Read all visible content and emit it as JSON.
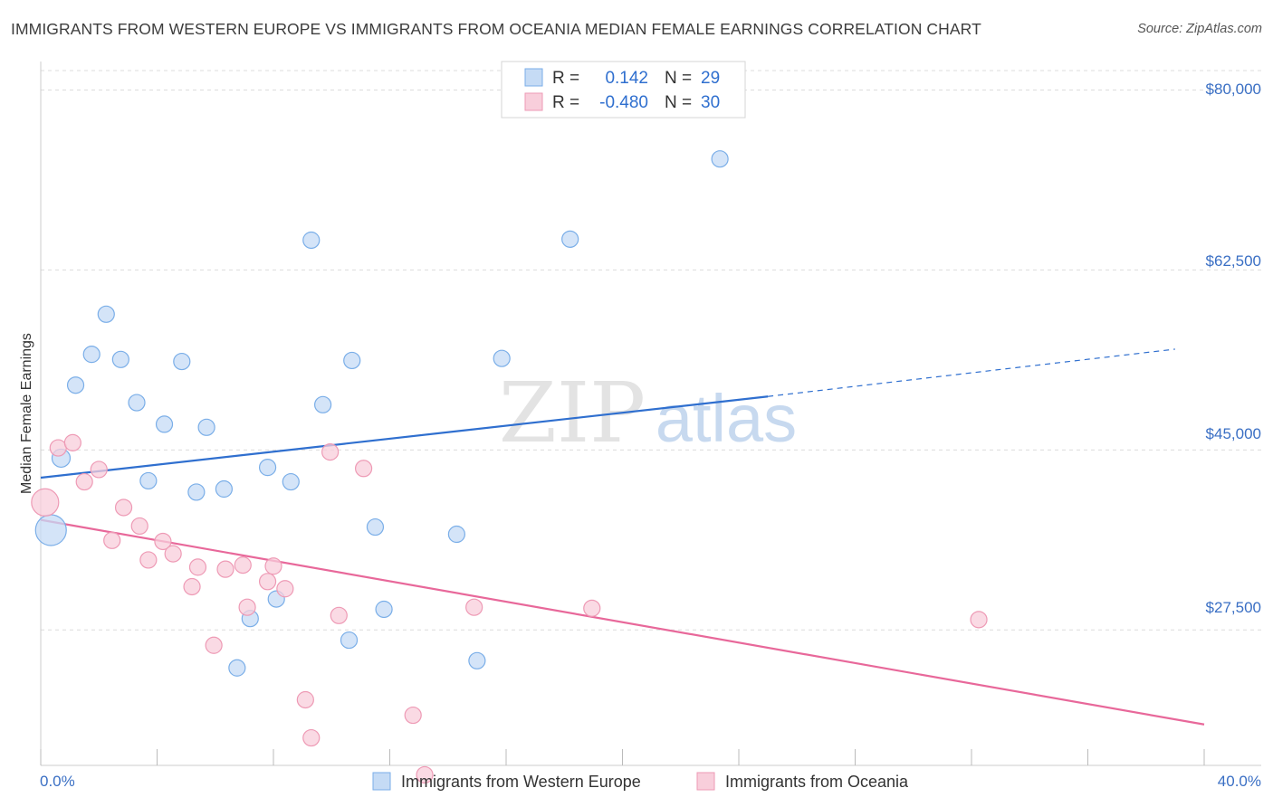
{
  "chart_data": {
    "type": "scatter",
    "title": "IMMIGRANTS FROM WESTERN EUROPE VS IMMIGRANTS FROM OCEANIA MEDIAN FEMALE EARNINGS CORRELATION CHART",
    "source": "Source: ZipAtlas.com",
    "xlabel": "",
    "ylabel": "Median Female Earnings",
    "xlim": [
      0,
      40
    ],
    "ylim": [
      15200,
      82600
    ],
    "x_tick_labels": [
      "0.0%",
      "40.0%"
    ],
    "y_ticks": [
      27500,
      45000,
      62500,
      80000
    ],
    "y_tick_labels": [
      "$27,500",
      "$45,000",
      "$62,500",
      "$80,000"
    ],
    "grid": true,
    "watermark": {
      "part1": "ZIP",
      "part2": "atlas"
    },
    "legend": {
      "rows": [
        {
          "r_label": "R =",
          "r_value": "0.142",
          "n_label": "N =",
          "n_value": "29"
        },
        {
          "r_label": "R =",
          "r_value": "-0.480",
          "n_label": "N =",
          "n_value": "30"
        }
      ]
    },
    "series": [
      {
        "name": "Immigrants from Western Europe",
        "color": "#7aaee8",
        "fill": "#c5dbf5",
        "line_color": "#2f6fcf",
        "r": 0.142,
        "n": 29,
        "trend": {
          "x0": 0,
          "y0": 42300,
          "x1": 25,
          "y1": 50200,
          "x_dash_end": 39,
          "y_dash_end": 54800
        },
        "points": [
          {
            "x": 0.35,
            "y": 37200,
            "s": 17
          },
          {
            "x": 0.7,
            "y": 44200,
            "s": 10
          },
          {
            "x": 1.2,
            "y": 51300,
            "s": 9
          },
          {
            "x": 1.75,
            "y": 54300,
            "s": 9
          },
          {
            "x": 2.25,
            "y": 58200,
            "s": 9
          },
          {
            "x": 2.75,
            "y": 53800,
            "s": 9
          },
          {
            "x": 3.3,
            "y": 49600,
            "s": 9
          },
          {
            "x": 3.7,
            "y": 42000,
            "s": 9
          },
          {
            "x": 4.25,
            "y": 47500,
            "s": 9
          },
          {
            "x": 4.85,
            "y": 53600,
            "s": 9
          },
          {
            "x": 5.35,
            "y": 40900,
            "s": 9
          },
          {
            "x": 5.7,
            "y": 47200,
            "s": 9
          },
          {
            "x": 6.3,
            "y": 41200,
            "s": 9
          },
          {
            "x": 6.75,
            "y": 23800,
            "s": 9
          },
          {
            "x": 7.2,
            "y": 28600,
            "s": 9
          },
          {
            "x": 7.8,
            "y": 43300,
            "s": 9
          },
          {
            "x": 8.1,
            "y": 30500,
            "s": 9
          },
          {
            "x": 8.6,
            "y": 41900,
            "s": 9
          },
          {
            "x": 9.3,
            "y": 65400,
            "s": 9
          },
          {
            "x": 9.7,
            "y": 49400,
            "s": 9
          },
          {
            "x": 10.6,
            "y": 26500,
            "s": 9
          },
          {
            "x": 10.7,
            "y": 53700,
            "s": 9
          },
          {
            "x": 11.5,
            "y": 37500,
            "s": 9
          },
          {
            "x": 11.8,
            "y": 29500,
            "s": 9
          },
          {
            "x": 14.3,
            "y": 36800,
            "s": 9
          },
          {
            "x": 15.0,
            "y": 24500,
            "s": 9
          },
          {
            "x": 15.85,
            "y": 53900,
            "s": 9
          },
          {
            "x": 18.2,
            "y": 65500,
            "s": 9
          },
          {
            "x": 23.35,
            "y": 73300,
            "s": 9
          }
        ]
      },
      {
        "name": "Immigrants from Oceania",
        "color": "#ee9ab5",
        "fill": "#f8cedb",
        "line_color": "#e8689a",
        "r": -0.48,
        "n": 30,
        "trend": {
          "x0": 0,
          "y0": 38200,
          "x1": 40,
          "y1": 18300
        },
        "points": [
          {
            "x": 0.15,
            "y": 39900,
            "s": 15
          },
          {
            "x": 0.6,
            "y": 45200,
            "s": 9
          },
          {
            "x": 1.1,
            "y": 45700,
            "s": 9
          },
          {
            "x": 1.5,
            "y": 41900,
            "s": 9
          },
          {
            "x": 2.0,
            "y": 43100,
            "s": 9
          },
          {
            "x": 2.45,
            "y": 36200,
            "s": 9
          },
          {
            "x": 2.85,
            "y": 39400,
            "s": 9
          },
          {
            "x": 3.4,
            "y": 37600,
            "s": 9
          },
          {
            "x": 3.7,
            "y": 34300,
            "s": 9
          },
          {
            "x": 4.2,
            "y": 36100,
            "s": 9
          },
          {
            "x": 4.55,
            "y": 34900,
            "s": 9
          },
          {
            "x": 5.2,
            "y": 31700,
            "s": 9
          },
          {
            "x": 5.4,
            "y": 33600,
            "s": 9
          },
          {
            "x": 5.95,
            "y": 26000,
            "s": 9
          },
          {
            "x": 6.35,
            "y": 33400,
            "s": 9
          },
          {
            "x": 6.95,
            "y": 33800,
            "s": 9
          },
          {
            "x": 7.1,
            "y": 29700,
            "s": 9
          },
          {
            "x": 7.8,
            "y": 32200,
            "s": 9
          },
          {
            "x": 8.0,
            "y": 33700,
            "s": 9
          },
          {
            "x": 8.4,
            "y": 31500,
            "s": 9
          },
          {
            "x": 9.1,
            "y": 20700,
            "s": 9
          },
          {
            "x": 9.3,
            "y": 17000,
            "s": 9
          },
          {
            "x": 9.95,
            "y": 44800,
            "s": 9
          },
          {
            "x": 10.25,
            "y": 28900,
            "s": 9
          },
          {
            "x": 11.1,
            "y": 43200,
            "s": 9
          },
          {
            "x": 12.8,
            "y": 19200,
            "s": 9
          },
          {
            "x": 13.2,
            "y": 13400,
            "s": 9
          },
          {
            "x": 14.9,
            "y": 29700,
            "s": 9
          },
          {
            "x": 18.95,
            "y": 29600,
            "s": 9
          },
          {
            "x": 32.25,
            "y": 28500,
            "s": 9
          }
        ]
      }
    ]
  }
}
